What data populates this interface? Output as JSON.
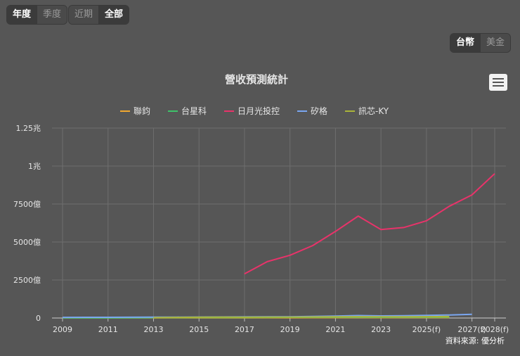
{
  "period_tabs_left": [
    {
      "label": "年度",
      "active": true
    },
    {
      "label": "季度",
      "active": false
    }
  ],
  "period_tabs_right": [
    {
      "label": "近期",
      "active": false
    },
    {
      "label": "全部",
      "active": true
    }
  ],
  "currency_tabs": [
    {
      "label": "台幣",
      "active": true
    },
    {
      "label": "美金",
      "active": false
    }
  ],
  "source_text": "資料來源: 優分析",
  "colors": {
    "background": "#565656",
    "grid": "#6e6e6e",
    "text": "#e6e6e6"
  },
  "chart_data": {
    "type": "line",
    "title": "營收預測統計",
    "legend_position": "top",
    "grid": true,
    "xlim": [
      2009,
      2028
    ],
    "ylim": [
      0,
      12500
    ],
    "y_unit": "億",
    "x_ticks": [
      "2009",
      "2011",
      "2013",
      "2015",
      "2017",
      "2019",
      "2021",
      "2023",
      "2025(f)",
      "2027(f)",
      "2028(f)"
    ],
    "x_tick_values": [
      2009,
      2011,
      2013,
      2015,
      2017,
      2019,
      2021,
      2023,
      2025,
      2027,
      2028
    ],
    "y_ticks": [
      "0",
      "2500億",
      "5000億",
      "7500億",
      "1兆",
      "1.25兆"
    ],
    "y_tick_values": [
      0,
      2500,
      5000,
      7500,
      10000,
      12500
    ],
    "series": [
      {
        "name": "聯鈞",
        "color": "#f0a830",
        "x": [
          2009,
          2010,
          2011,
          2012,
          2013,
          2014,
          2015,
          2016,
          2017,
          2018,
          2019,
          2020,
          2021,
          2022,
          2023,
          2024,
          2025,
          2026
        ],
        "y": [
          8,
          9,
          9,
          10,
          12,
          12,
          14,
          15,
          16,
          18,
          20,
          22,
          25,
          28,
          24,
          26,
          28,
          30
        ]
      },
      {
        "name": "台星科",
        "color": "#3ec26a",
        "x": [
          2009,
          2010,
          2011,
          2012,
          2013,
          2014,
          2015,
          2016,
          2017,
          2018,
          2019,
          2020,
          2021,
          2022,
          2023,
          2024,
          2025,
          2026
        ],
        "y": [
          10,
          12,
          15,
          20,
          25,
          30,
          32,
          35,
          38,
          40,
          45,
          50,
          55,
          60,
          50,
          55,
          60,
          65
        ]
      },
      {
        "name": "日月光投控",
        "color": "#e8336a",
        "x": [
          2017,
          2018,
          2019,
          2020,
          2021,
          2022,
          2023,
          2024,
          2025,
          2026,
          2027,
          2028
        ],
        "y": [
          2903,
          3710,
          4131,
          4770,
          5700,
          6709,
          5819,
          5955,
          6400,
          7350,
          8100,
          9500
        ]
      },
      {
        "name": "矽格",
        "color": "#7aa6f0",
        "x": [
          2009,
          2010,
          2011,
          2012,
          2013,
          2014,
          2015,
          2016,
          2017,
          2018,
          2019,
          2020,
          2021,
          2022,
          2023,
          2024,
          2025,
          2026,
          2027
        ],
        "y": [
          40,
          45,
          45,
          50,
          55,
          60,
          65,
          70,
          75,
          80,
          85,
          100,
          130,
          160,
          140,
          150,
          170,
          200,
          240
        ]
      },
      {
        "name": "訊芯-KY",
        "color": "#aab43a",
        "x": [
          2013,
          2014,
          2015,
          2016,
          2017,
          2018,
          2019,
          2020,
          2021,
          2022,
          2023,
          2024,
          2025,
          2026
        ],
        "y": [
          25,
          40,
          50,
          60,
          50,
          55,
          60,
          70,
          85,
          90,
          80,
          85,
          90,
          95
        ]
      }
    ]
  }
}
